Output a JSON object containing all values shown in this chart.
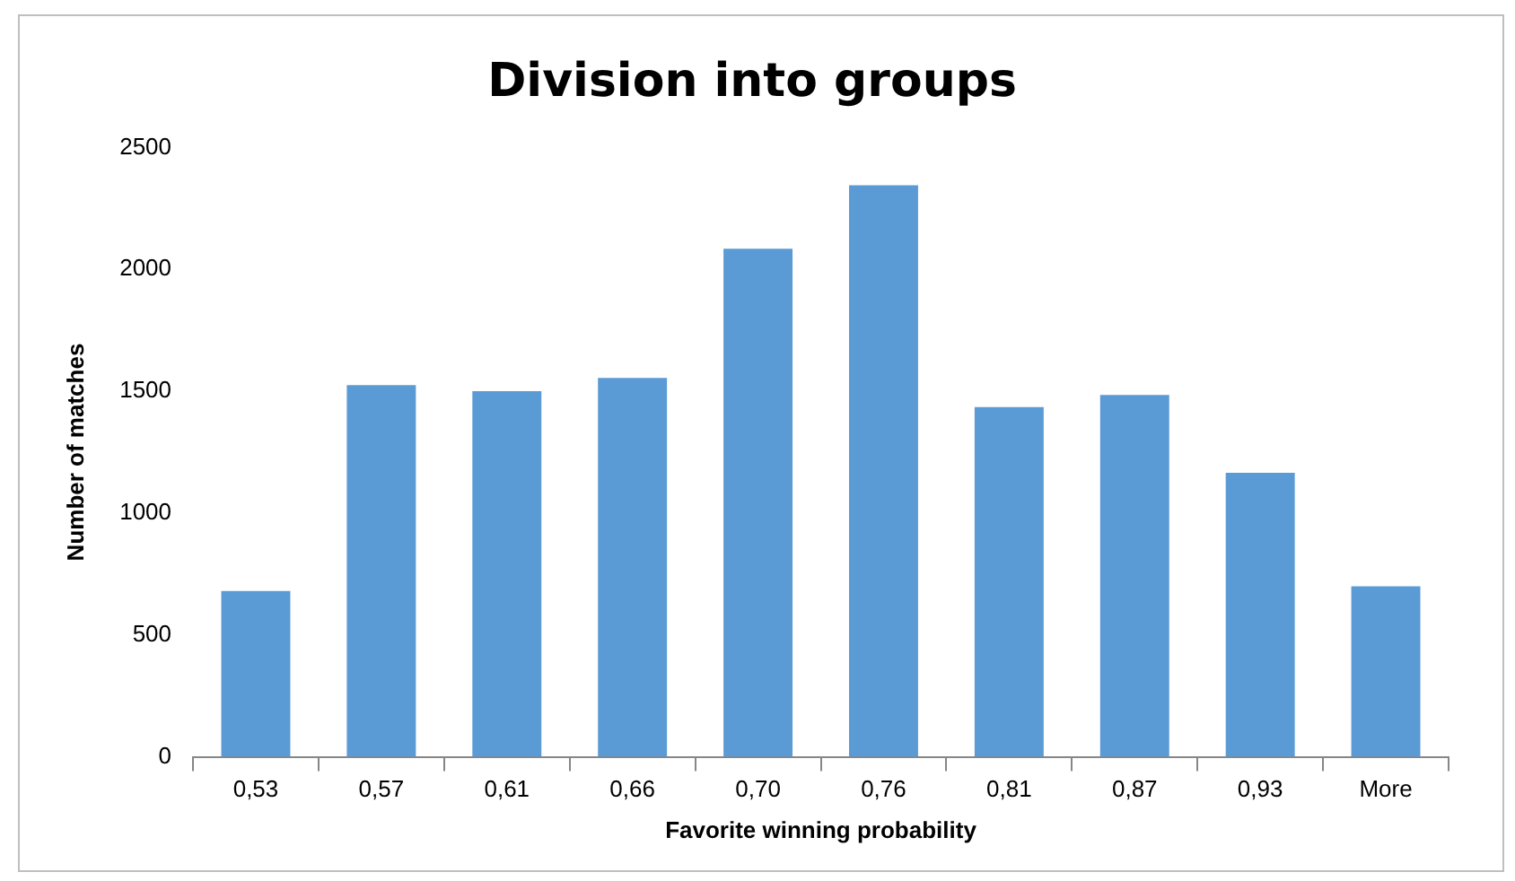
{
  "chart_data": {
    "type": "bar",
    "title": "Division into groups",
    "xlabel": "Favorite winning probability",
    "ylabel": "Number of matches",
    "categories": [
      "0,53",
      "0,57",
      "0,61",
      "0,66",
      "0,70",
      "0,76",
      "0,81",
      "0,87",
      "0,93",
      "More"
    ],
    "values": [
      680,
      1525,
      1500,
      1555,
      2085,
      2345,
      1435,
      1485,
      1165,
      700
    ],
    "color": "#5b9bd5",
    "ylim": [
      0,
      2500
    ],
    "yticks": [
      0,
      500,
      1000,
      1500,
      2000,
      2500
    ],
    "grid": false,
    "legend": false
  }
}
